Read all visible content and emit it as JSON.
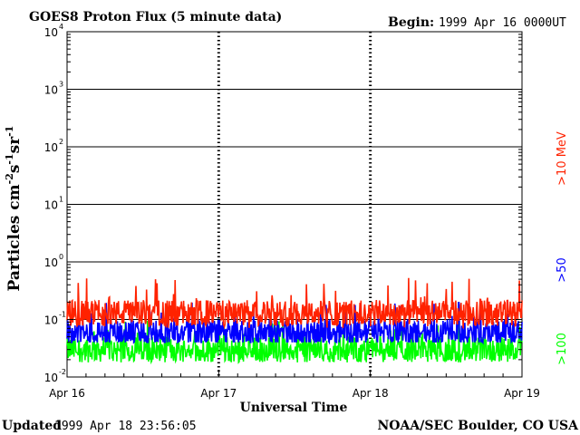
{
  "header": {
    "title": "GOES8 Proton Flux (5 minute data)",
    "begin_label": "Begin:",
    "begin_value": "1999 Apr 16 0000UT"
  },
  "footer": {
    "updated_label": "Updated",
    "updated_value": "1999 Apr 18 23:56:05",
    "credit": "NOAA/SEC Boulder, CO USA"
  },
  "chart_data": {
    "type": "line",
    "title": "GOES8 Proton Flux (5 minute data)",
    "xlabel": "Universal Time",
    "ylabel": "Particles cm-2s-1sr-1",
    "y_scale": "log",
    "ylim": [
      0.01,
      10000
    ],
    "y_ticks": [
      {
        "base": "10",
        "exp": "-2",
        "value": 0.01
      },
      {
        "base": "10",
        "exp": "-1",
        "value": 0.1
      },
      {
        "base": "10",
        "exp": "0",
        "value": 1
      },
      {
        "base": "10",
        "exp": "1",
        "value": 10
      },
      {
        "base": "10",
        "exp": "2",
        "value": 100
      },
      {
        "base": "10",
        "exp": "3",
        "value": 1000
      },
      {
        "base": "10",
        "exp": "4",
        "value": 10000
      }
    ],
    "x_tick_labels": [
      "Apr 16",
      "Apr 17",
      "Apr 18",
      "Apr 19"
    ],
    "x_range_days": [
      "1999-04-16",
      "1999-04-19"
    ],
    "grid": "horizontal at each decade",
    "series": [
      {
        "name": ">10 MeV",
        "color": "#ff2200",
        "typical_value": 0.13,
        "min": 0.07,
        "max": 0.55
      },
      {
        "name": ">50",
        "color": "#0000ff",
        "typical_value": 0.06,
        "min": 0.04,
        "max": 0.2
      },
      {
        "name": ">100",
        "color": "#00ff00",
        "typical_value": 0.03,
        "min": 0.018,
        "max": 0.1
      }
    ],
    "series_labels": [
      {
        "text": ">10 MeV",
        "color": "#ff2200"
      },
      {
        "text": ">50",
        "color": "#0000ff"
      },
      {
        "text": ">100",
        "color": "#00ff00"
      }
    ]
  }
}
